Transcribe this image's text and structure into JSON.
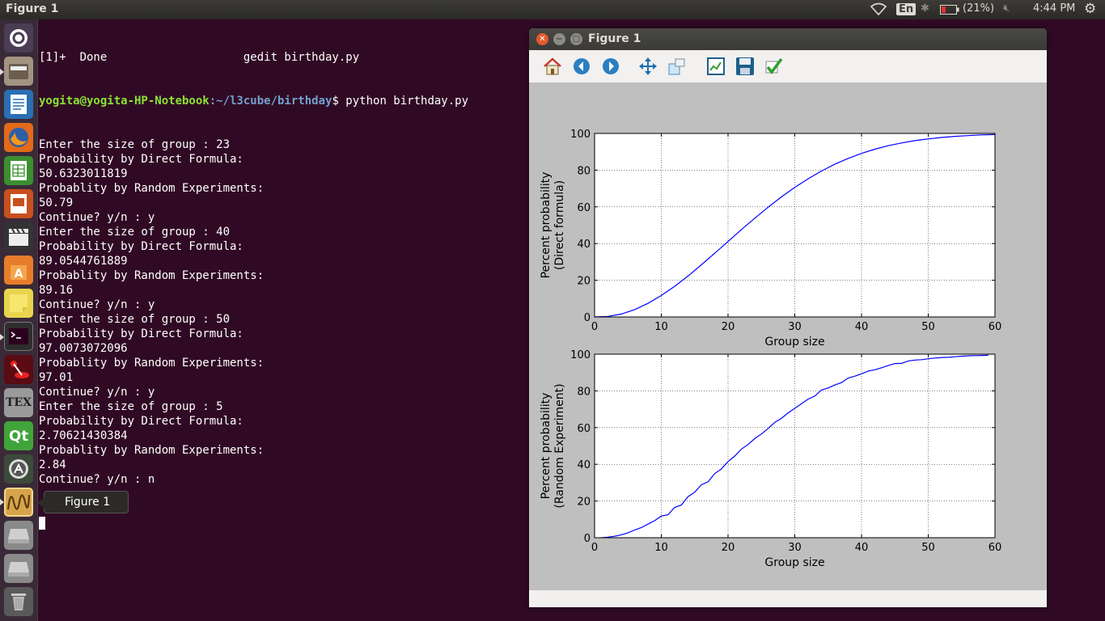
{
  "top_panel": {
    "window_title": "Figure 1",
    "keyboard_layout": "En",
    "battery": "(21%)",
    "clock": "4:44 PM"
  },
  "launcher": {
    "items": [
      {
        "name": "dash-home-icon"
      },
      {
        "name": "files-icon"
      },
      {
        "name": "libreoffice-writer-icon"
      },
      {
        "name": "firefox-icon"
      },
      {
        "name": "libreoffice-calc-icon"
      },
      {
        "name": "libreoffice-impress-icon"
      },
      {
        "name": "video-editor-icon"
      },
      {
        "name": "software-center-icon"
      },
      {
        "name": "notes-icon"
      },
      {
        "name": "terminal-icon"
      },
      {
        "name": "media-tool-icon"
      },
      {
        "name": "tex-icon"
      },
      {
        "name": "qt-creator-icon"
      },
      {
        "name": "updater-icon"
      },
      {
        "name": "figure-app-icon"
      },
      {
        "name": "drive-icon"
      },
      {
        "name": "drive-icon"
      },
      {
        "name": "trash-icon"
      }
    ],
    "tooltip": "Figure 1"
  },
  "terminal": {
    "job_line": "[1]+  Done                    gedit birthday.py",
    "prompt_user": "yogita@yogita-HP-Notebook",
    "prompt_path": ":~/l3cube/birthday",
    "prompt_cmd": "$ python birthday.py",
    "lines": [
      "Enter the size of group : 23",
      "Probability by Direct Formula:",
      "50.6323011819",
      "Probablity by Random Experiments:",
      "50.79",
      "Continue? y/n : y",
      "Enter the size of group : 40",
      "Probability by Direct Formula:",
      "89.0544761889",
      "Probablity by Random Experiments:",
      "89.16",
      "Continue? y/n : y",
      "Enter the size of group : 50",
      "Probability by Direct Formula:",
      "97.0073072096",
      "Probablity by Random Experiments:",
      "97.01",
      "Continue? y/n : y",
      "Enter the size of group : 5",
      "Probability by Direct Formula:",
      "2.70621430384",
      "Probablity by Random Experiments:",
      "2.84",
      "Continue? y/n : n"
    ]
  },
  "figure_window": {
    "title": "Figure 1",
    "toolbar": [
      {
        "name": "home-icon"
      },
      {
        "name": "back-icon"
      },
      {
        "name": "forward-icon"
      },
      {
        "name": "pan-icon"
      },
      {
        "name": "zoom-icon"
      },
      {
        "name": "configure-subplots-icon"
      },
      {
        "name": "save-icon"
      },
      {
        "name": "edit-parameters-icon"
      }
    ]
  },
  "chart_data": [
    {
      "type": "line",
      "title": "",
      "xlabel": "Group size",
      "ylabel": [
        "Percent probability",
        "(Direct formula)"
      ],
      "xlim": [
        0,
        60
      ],
      "ylim": [
        0,
        100
      ],
      "xticks": [
        0,
        10,
        20,
        30,
        40,
        50,
        60
      ],
      "yticks": [
        0,
        20,
        40,
        60,
        80,
        100
      ],
      "grid": true,
      "line_color": "#0000ff",
      "series": [
        {
          "x": [
            0,
            2,
            4,
            6,
            8,
            10,
            12,
            14,
            16,
            18,
            20,
            22,
            24,
            26,
            28,
            30,
            32,
            34,
            36,
            38,
            40,
            42,
            44,
            46,
            48,
            50,
            52,
            54,
            56,
            58,
            60
          ],
          "y": [
            0,
            0.3,
            1.6,
            4.0,
            7.4,
            11.7,
            16.7,
            22.3,
            28.4,
            34.7,
            41.1,
            47.6,
            53.8,
            59.8,
            65.4,
            70.6,
            75.3,
            79.5,
            83.2,
            86.4,
            89.1,
            91.4,
            93.3,
            94.8,
            96.1,
            97.0,
            97.8,
            98.4,
            98.8,
            99.2,
            99.4
          ]
        }
      ]
    },
    {
      "type": "line",
      "title": "",
      "xlabel": "Group size",
      "ylabel": [
        "Percent probability",
        "(Random Experiment)"
      ],
      "xlim": [
        0,
        60
      ],
      "ylim": [
        0,
        100
      ],
      "xticks": [
        0,
        10,
        20,
        30,
        40,
        50,
        60
      ],
      "yticks": [
        0,
        20,
        40,
        60,
        80,
        100
      ],
      "grid": true,
      "line_color": "#0000ff",
      "series": [
        {
          "x": [
            1,
            2,
            3,
            4,
            5,
            6,
            7,
            8,
            9,
            10,
            11,
            12,
            13,
            14,
            15,
            16,
            17,
            18,
            19,
            20,
            21,
            22,
            23,
            24,
            25,
            26,
            27,
            28,
            29,
            30,
            31,
            32,
            33,
            34,
            35,
            36,
            37,
            38,
            39,
            40,
            41,
            42,
            43,
            44,
            45,
            46,
            47,
            48,
            49,
            50,
            51,
            52,
            53,
            54,
            55,
            56,
            57,
            58,
            59
          ],
          "y": [
            0,
            0.3,
            0.8,
            1.6,
            2.7,
            4.2,
            5.5,
            7.4,
            9.3,
            11.8,
            12.5,
            16.5,
            17.8,
            22.4,
            24.8,
            28.8,
            30.5,
            34.9,
            37.5,
            41.5,
            44.5,
            48.3,
            50.8,
            54.0,
            56.5,
            59.5,
            62.8,
            65.0,
            68.0,
            70.5,
            73.0,
            75.5,
            77.2,
            80.5,
            81.6,
            83.2,
            84.5,
            87.0,
            88.0,
            89.3,
            90.8,
            91.5,
            92.6,
            93.8,
            94.9,
            95.0,
            96.3,
            96.8,
            97.0,
            97.5,
            97.9,
            98.2,
            98.3,
            98.6,
            98.9,
            99.1,
            99.2,
            99.3,
            99.4
          ]
        }
      ]
    }
  ]
}
